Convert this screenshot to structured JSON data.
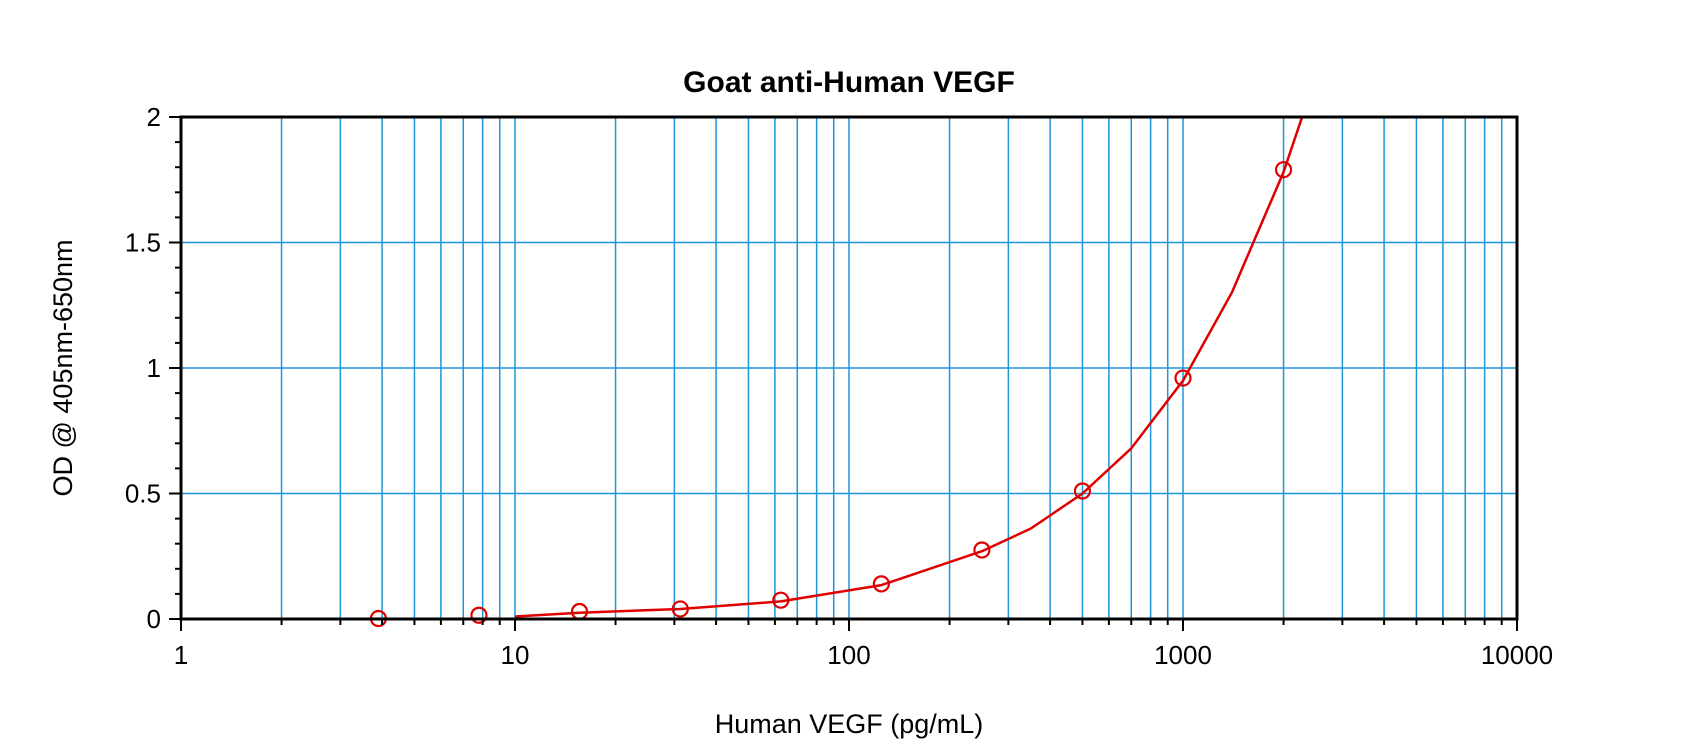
{
  "chart_data": {
    "type": "scatter",
    "title": "Goat anti-Human VEGF",
    "xlabel": "Human VEGF (pg/mL)",
    "ylabel": "OD @ 405nm-650nm",
    "xscale": "log",
    "xlim": [
      1,
      10000
    ],
    "ylim": [
      0,
      2
    ],
    "x_ticks": [
      1,
      10,
      100,
      1000,
      10000
    ],
    "x_tick_labels": [
      "1",
      "10",
      "100",
      "1000",
      "10000"
    ],
    "y_ticks": [
      0,
      0.5,
      1,
      1.5,
      2
    ],
    "y_tick_labels": [
      "0",
      "0.5",
      "1",
      "1.5",
      "2"
    ],
    "grid": true,
    "colors": {
      "grid": "#1e96dc",
      "series": "#e00000",
      "axes": "#000000"
    },
    "series": [
      {
        "marker": "open-circle",
        "x": [
          3.9,
          7.8,
          15.6,
          31.25,
          62.5,
          125,
          250,
          500,
          1000,
          2000
        ],
        "y": [
          0.002,
          0.015,
          0.03,
          0.04,
          0.075,
          0.14,
          0.275,
          0.51,
          0.96,
          1.79
        ]
      }
    ],
    "fit_curve": {
      "x": [
        10,
        15.6,
        31.25,
        62.5,
        125,
        250,
        350,
        500,
        700,
        1000,
        1400,
        2000,
        2300
      ],
      "y": [
        0.01,
        0.025,
        0.04,
        0.07,
        0.135,
        0.27,
        0.36,
        0.5,
        0.68,
        0.95,
        1.3,
        1.78,
        2.02
      ]
    }
  }
}
